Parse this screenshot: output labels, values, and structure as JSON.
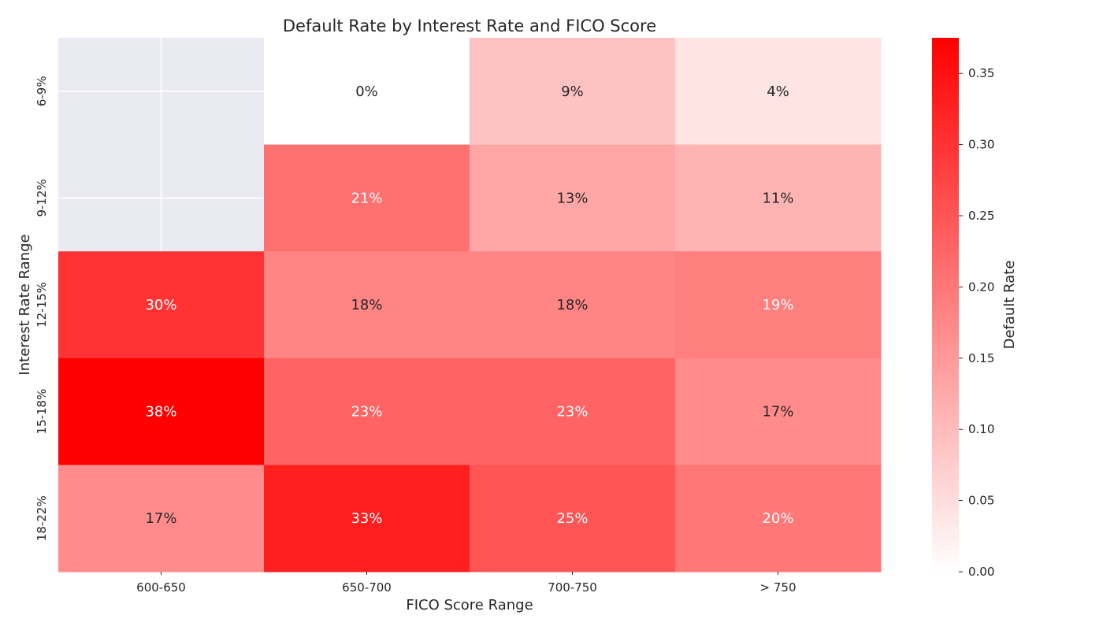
{
  "chart_data": {
    "type": "heatmap",
    "title": "Default Rate by Interest Rate and FICO Score",
    "xlabel": "FICO Score Range",
    "ylabel": "Interest Rate Range",
    "x_categories": [
      "600-650",
      "650-700",
      "700-750",
      "> 750"
    ],
    "y_categories": [
      "6-9%",
      "9-12%",
      "12-15%",
      "15-18%",
      "18-22%"
    ],
    "values": [
      [
        null,
        0.0,
        0.09,
        0.04
      ],
      [
        null,
        0.21,
        0.13,
        0.11
      ],
      [
        0.3,
        0.18,
        0.18,
        0.19
      ],
      [
        0.38,
        0.23,
        0.23,
        0.17
      ],
      [
        0.17,
        0.33,
        0.25,
        0.2
      ]
    ],
    "cell_labels": [
      [
        "",
        "0%",
        "9%",
        "4%"
      ],
      [
        "",
        "21%",
        "13%",
        "11%"
      ],
      [
        "30%",
        "18%",
        "18%",
        "19%"
      ],
      [
        "38%",
        "23%",
        "23%",
        "17%"
      ],
      [
        "17%",
        "33%",
        "25%",
        "20%"
      ]
    ],
    "colorbar": {
      "label": "Default Rate",
      "range": [
        0,
        0.375
      ],
      "ticks": [
        0.0,
        0.05,
        0.1,
        0.15,
        0.2,
        0.25,
        0.3,
        0.35
      ],
      "tick_labels": [
        "0.00",
        "0.05",
        "0.10",
        "0.15",
        "0.20",
        "0.25",
        "0.30",
        "0.35"
      ],
      "color_low": "#ffffff",
      "color_high": "#ff0000"
    },
    "missing_color": "#eaeaf2",
    "grid": true
  }
}
